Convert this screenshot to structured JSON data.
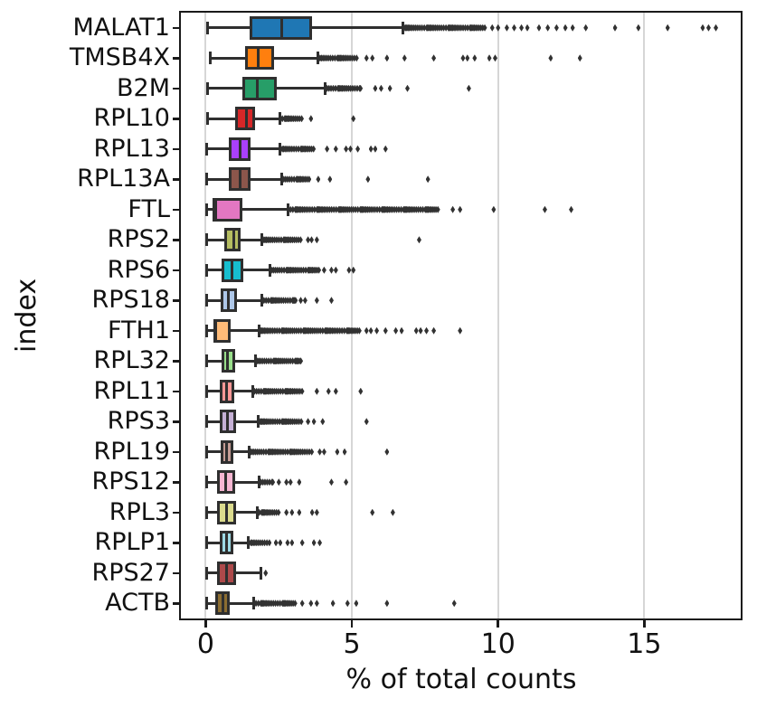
{
  "figure": {
    "background": "#ffffff"
  },
  "chart_data": {
    "type": "boxplot",
    "orientation": "horizontal",
    "title": "",
    "xlabel": "% of total counts",
    "ylabel": "index",
    "xlim": [
      -0.85,
      18.3
    ],
    "xticks": [
      0,
      5,
      10,
      15
    ],
    "grid": "vertical gridlines at xticks, light gray, behind data",
    "legend": "none",
    "grid_color": "#d6d6d6",
    "spine_color": "#1a1a1a",
    "box_line_color": "#2f2f2f",
    "outlier_color": "#323232",
    "outlier_marker": "diamond",
    "genes": [
      {
        "name": "MALAT1",
        "color": "#1f77b4",
        "lo": 0.05,
        "q1": 1.5,
        "med": 2.6,
        "q3": 3.65,
        "hi": 6.75,
        "dense_to": 9.6,
        "outliers": [
          9.8,
          10.0,
          10.3,
          10.55,
          10.8,
          11.0,
          11.4,
          11.7,
          12.0,
          12.3,
          12.55,
          13.0,
          14.0,
          14.8,
          15.8,
          17.0,
          17.2,
          17.45
        ]
      },
      {
        "name": "TMSB4X",
        "color": "#ff7f0e",
        "lo": 0.15,
        "q1": 1.35,
        "med": 1.78,
        "q3": 2.35,
        "hi": 3.84,
        "dense_to": 5.2,
        "outliers": [
          5.5,
          5.7,
          6.2,
          6.8,
          7.8,
          8.8,
          8.95,
          9.2,
          9.7,
          9.9,
          11.8,
          12.8
        ]
      },
      {
        "name": "B2M",
        "color": "#279e68",
        "lo": 0.05,
        "q1": 1.26,
        "med": 1.76,
        "q3": 2.42,
        "hi": 4.08,
        "dense_to": 5.3,
        "outliers": [
          5.8,
          6.0,
          6.3,
          6.9,
          9.0
        ]
      },
      {
        "name": "RPL10",
        "color": "#d62728",
        "lo": 0.05,
        "q1": 1.0,
        "med": 1.4,
        "q3": 1.68,
        "hi": 2.55,
        "dense_to": 3.3,
        "outliers": [
          3.6,
          5.05
        ]
      },
      {
        "name": "RPL13",
        "color": "#aa40fc",
        "lo": 0.03,
        "q1": 0.78,
        "med": 1.19,
        "q3": 1.53,
        "hi": 2.55,
        "dense_to": 3.7,
        "outliers": [
          4.15,
          4.45,
          4.8,
          4.95,
          5.2,
          5.65,
          5.8,
          6.15
        ]
      },
      {
        "name": "RPL13A",
        "color": "#8c564b",
        "lo": 0.03,
        "q1": 0.78,
        "med": 1.17,
        "q3": 1.53,
        "hi": 2.6,
        "dense_to": 3.6,
        "outliers": [
          3.85,
          4.25,
          5.55,
          7.6
        ]
      },
      {
        "name": "FTL",
        "color": "#e377c2",
        "lo": 0.02,
        "q1": 0.23,
        "med": 0.35,
        "q3": 1.24,
        "hi": 2.83,
        "dense_to": 8.0,
        "outliers": [
          8.45,
          8.7,
          9.85,
          11.6,
          12.5
        ]
      },
      {
        "name": "RPS2",
        "color": "#b5bd61",
        "lo": 0.03,
        "q1": 0.63,
        "med": 0.95,
        "q3": 1.2,
        "hi": 1.92,
        "dense_to": 3.3,
        "outliers": [
          3.5,
          3.62,
          3.8,
          7.3
        ]
      },
      {
        "name": "RPS6",
        "color": "#17becf",
        "lo": 0.03,
        "q1": 0.54,
        "med": 0.9,
        "q3": 1.27,
        "hi": 2.2,
        "dense_to": 3.9,
        "outliers": [
          4.05,
          4.3,
          4.45,
          4.9,
          5.05
        ]
      },
      {
        "name": "RPS18",
        "color": "#aec7e8",
        "lo": 0.03,
        "q1": 0.5,
        "med": 0.78,
        "q3": 1.07,
        "hi": 1.92,
        "dense_to": 3.1,
        "outliers": [
          3.25,
          3.4,
          3.8,
          4.3
        ]
      },
      {
        "name": "FTH1",
        "color": "#ffbb78",
        "lo": 0.02,
        "q1": 0.25,
        "med": 0.35,
        "q3": 0.85,
        "hi": 1.82,
        "dense_to": 5.3,
        "outliers": [
          5.5,
          5.65,
          5.85,
          6.15,
          6.5,
          6.7,
          7.2,
          7.35,
          7.55,
          7.8,
          8.7
        ]
      },
      {
        "name": "RPL32",
        "color": "#98df8a",
        "lo": 0.03,
        "q1": 0.54,
        "med": 0.75,
        "q3": 1.0,
        "hi": 1.7,
        "dense_to": 3.3,
        "outliers": []
      },
      {
        "name": "RPL11",
        "color": "#ff9896",
        "lo": 0.03,
        "q1": 0.48,
        "med": 0.72,
        "q3": 0.98,
        "hi": 1.6,
        "dense_to": 3.3,
        "outliers": [
          3.8,
          4.2,
          4.45,
          5.3
        ]
      },
      {
        "name": "RPS3",
        "color": "#c5b0d5",
        "lo": 0.03,
        "q1": 0.48,
        "med": 0.75,
        "q3": 1.04,
        "hi": 1.8,
        "dense_to": 3.3,
        "outliers": [
          3.5,
          3.7,
          4.0,
          5.5
        ]
      },
      {
        "name": "RPL19",
        "color": "#c49c94",
        "lo": 0.03,
        "q1": 0.5,
        "med": 0.72,
        "q3": 0.94,
        "hi": 1.48,
        "dense_to": 3.64,
        "outliers": [
          3.9,
          4.05,
          4.5,
          4.75,
          6.2
        ]
      },
      {
        "name": "RPS12",
        "color": "#f7b6d2",
        "lo": 0.03,
        "q1": 0.4,
        "med": 0.69,
        "q3": 1.0,
        "hi": 1.82,
        "dense_to": 2.3,
        "outliers": [
          2.5,
          2.76,
          2.9,
          3.2,
          4.3,
          4.8
        ]
      },
      {
        "name": "RPL3",
        "color": "#dbdb8d",
        "lo": 0.03,
        "q1": 0.4,
        "med": 0.72,
        "q3": 1.04,
        "hi": 1.76,
        "dense_to": 2.57,
        "outliers": [
          2.76,
          2.95,
          3.2,
          3.64,
          3.8,
          5.7,
          6.4
        ]
      },
      {
        "name": "RPLP1",
        "color": "#9edae5",
        "lo": 0.03,
        "q1": 0.48,
        "med": 0.72,
        "q3": 0.94,
        "hi": 1.47,
        "dense_to": 2.2,
        "outliers": [
          2.4,
          2.55,
          2.8,
          2.95,
          3.3,
          3.7,
          3.9
        ]
      },
      {
        "name": "RPS27",
        "color": "#ad494a",
        "lo": 0.02,
        "q1": 0.38,
        "med": 0.72,
        "q3": 1.04,
        "hi": 1.88,
        "dense_to": null,
        "outliers": [
          2.05
        ]
      },
      {
        "name": "ACTB",
        "color": "#8c6d31",
        "lo": 0.02,
        "q1": 0.33,
        "med": 0.6,
        "q3": 0.83,
        "hi": 1.65,
        "dense_to": 3.1,
        "outliers": [
          3.3,
          3.6,
          3.8,
          4.35,
          4.85,
          5.15,
          6.2,
          8.5
        ]
      }
    ]
  }
}
